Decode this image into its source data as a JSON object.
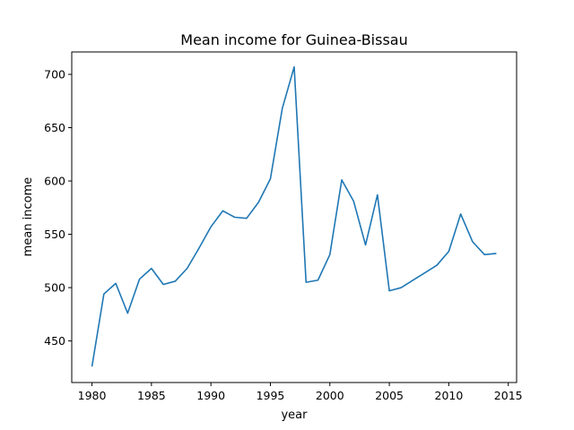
{
  "chart_data": {
    "type": "line",
    "title": "Mean income for Guinea-Bissau",
    "xlabel": "year",
    "ylabel": "mean income",
    "xlim": [
      1978.3,
      2015.7
    ],
    "ylim": [
      411,
      721
    ],
    "xticks": [
      1980,
      1985,
      1990,
      1995,
      2000,
      2005,
      2010,
      2015
    ],
    "yticks": [
      450,
      500,
      550,
      600,
      650,
      700
    ],
    "grid": false,
    "series": [
      {
        "color": "#1f77b4",
        "x": [
          1980,
          1981,
          1982,
          1983,
          1984,
          1985,
          1986,
          1987,
          1988,
          1989,
          1990,
          1991,
          1992,
          1993,
          1994,
          1995,
          1996,
          1997,
          1998,
          1999,
          2000,
          2001,
          2002,
          2003,
          2004,
          2005,
          2006,
          2007,
          2008,
          2009,
          2010,
          2011,
          2012,
          2013,
          2014
        ],
        "y": [
          426,
          494,
          504,
          476,
          508,
          518,
          503,
          506,
          518,
          537,
          557,
          572,
          566,
          565,
          580,
          602,
          668,
          707,
          505,
          507,
          531,
          601,
          581,
          540,
          587,
          497,
          500,
          507,
          514,
          521,
          534,
          569,
          543,
          531,
          532
        ]
      }
    ]
  }
}
